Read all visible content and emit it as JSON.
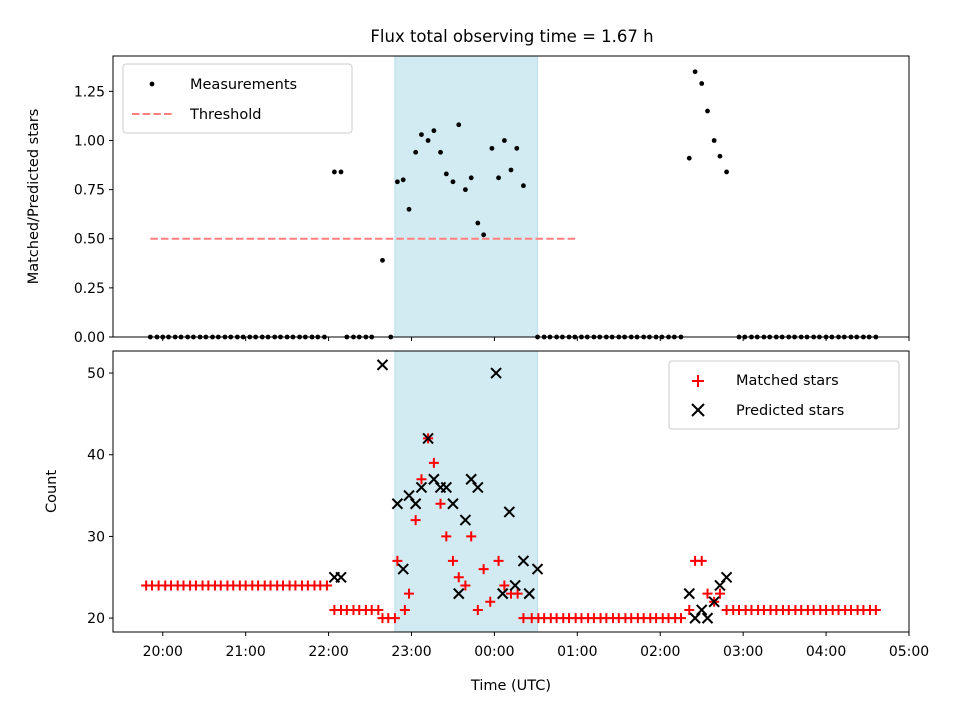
{
  "chart_data": {
    "title": "Flux total observing time = 1.67 h",
    "xlabel": "Time (UTC)",
    "x_unit": "hours since 20:00 UTC",
    "x_range": [
      -0.6,
      9.0
    ],
    "x_ticks": [
      {
        "value": 0,
        "label": "20:00"
      },
      {
        "value": 1,
        "label": "21:00"
      },
      {
        "value": 2,
        "label": "22:00"
      },
      {
        "value": 3,
        "label": "23:00"
      },
      {
        "value": 4,
        "label": "00:00"
      },
      {
        "value": 5,
        "label": "01:00"
      },
      {
        "value": 6,
        "label": "02:00"
      },
      {
        "value": 7,
        "label": "03:00"
      },
      {
        "value": 8,
        "label": "04:00"
      },
      {
        "value": 9,
        "label": "05:00"
      }
    ],
    "observing_window": [
      2.8,
      4.52
    ],
    "panels": [
      {
        "type": "scatter",
        "ylabel": "Matched/Predicted stars",
        "ylim": [
          0,
          1.43
        ],
        "y_ticks": [
          "0.00",
          "0.25",
          "0.50",
          "0.75",
          "1.00",
          "1.25"
        ],
        "legend": {
          "position": "top-left",
          "measurements_label": "Measurements",
          "threshold_label": "Threshold"
        },
        "threshold": {
          "value": 0.5,
          "x_range": [
            -0.15,
            4.98
          ]
        },
        "measurements": [
          [
            -0.15,
            0
          ],
          [
            -0.07,
            0
          ],
          [
            0,
            0
          ],
          [
            0.07,
            0
          ],
          [
            0.15,
            0
          ],
          [
            0.22,
            0
          ],
          [
            0.3,
            0
          ],
          [
            0.37,
            0
          ],
          [
            0.45,
            0
          ],
          [
            0.52,
            0
          ],
          [
            0.6,
            0
          ],
          [
            0.67,
            0
          ],
          [
            0.75,
            0
          ],
          [
            0.82,
            0
          ],
          [
            0.9,
            0
          ],
          [
            0.97,
            0
          ],
          [
            1.05,
            0
          ],
          [
            1.12,
            0
          ],
          [
            1.2,
            0
          ],
          [
            1.27,
            0
          ],
          [
            1.35,
            0
          ],
          [
            1.42,
            0
          ],
          [
            1.5,
            0
          ],
          [
            1.57,
            0
          ],
          [
            1.65,
            0
          ],
          [
            1.72,
            0
          ],
          [
            1.8,
            0
          ],
          [
            1.87,
            0
          ],
          [
            1.95,
            0
          ],
          [
            2.07,
            0.84
          ],
          [
            2.15,
            0.84
          ],
          [
            2.22,
            0
          ],
          [
            2.3,
            0
          ],
          [
            2.37,
            0
          ],
          [
            2.45,
            0
          ],
          [
            2.52,
            0
          ],
          [
            2.65,
            0.39
          ],
          [
            2.75,
            0
          ],
          [
            2.83,
            0.79
          ],
          [
            2.9,
            0.8
          ],
          [
            2.97,
            0.65
          ],
          [
            3.05,
            0.94
          ],
          [
            3.12,
            1.03
          ],
          [
            3.2,
            1.0
          ],
          [
            3.27,
            1.05
          ],
          [
            3.35,
            0.94
          ],
          [
            3.42,
            0.83
          ],
          [
            3.5,
            0.79
          ],
          [
            3.57,
            1.08
          ],
          [
            3.65,
            0.75
          ],
          [
            3.72,
            0.81
          ],
          [
            3.8,
            0.58
          ],
          [
            3.87,
            0.52
          ],
          [
            3.97,
            0.96
          ],
          [
            4.05,
            0.81
          ],
          [
            4.12,
            1.0
          ],
          [
            4.2,
            0.85
          ],
          [
            4.27,
            0.96
          ],
          [
            4.35,
            0.77
          ],
          [
            4.52,
            0
          ],
          [
            4.6,
            0
          ],
          [
            4.67,
            0
          ],
          [
            4.75,
            0
          ],
          [
            4.82,
            0
          ],
          [
            4.9,
            0
          ],
          [
            4.97,
            0
          ],
          [
            5.05,
            0
          ],
          [
            5.12,
            0
          ],
          [
            5.2,
            0
          ],
          [
            5.27,
            0
          ],
          [
            5.35,
            0
          ],
          [
            5.42,
            0
          ],
          [
            5.5,
            0
          ],
          [
            5.57,
            0
          ],
          [
            5.65,
            0
          ],
          [
            5.72,
            0
          ],
          [
            5.8,
            0
          ],
          [
            5.87,
            0
          ],
          [
            5.95,
            0
          ],
          [
            6.02,
            0
          ],
          [
            6.1,
            0
          ],
          [
            6.17,
            0
          ],
          [
            6.25,
            0
          ],
          [
            6.35,
            0.91
          ],
          [
            6.42,
            1.35
          ],
          [
            6.5,
            1.29
          ],
          [
            6.57,
            1.15
          ],
          [
            6.65,
            1.0
          ],
          [
            6.72,
            0.92
          ],
          [
            6.8,
            0.84
          ],
          [
            6.95,
            0
          ],
          [
            7.02,
            0
          ],
          [
            7.1,
            0
          ],
          [
            7.17,
            0
          ],
          [
            7.25,
            0
          ],
          [
            7.32,
            0
          ],
          [
            7.4,
            0
          ],
          [
            7.47,
            0
          ],
          [
            7.55,
            0
          ],
          [
            7.62,
            0
          ],
          [
            7.7,
            0
          ],
          [
            7.77,
            0
          ],
          [
            7.85,
            0
          ],
          [
            7.92,
            0
          ],
          [
            8.0,
            0
          ],
          [
            8.07,
            0
          ],
          [
            8.15,
            0
          ],
          [
            8.22,
            0
          ],
          [
            8.3,
            0
          ],
          [
            8.37,
            0
          ],
          [
            8.45,
            0
          ],
          [
            8.52,
            0
          ],
          [
            8.6,
            0
          ]
        ]
      },
      {
        "type": "scatter",
        "ylabel": "Count",
        "ylim": [
          18.3,
          52.7
        ],
        "y_ticks": [
          "20",
          "30",
          "40",
          "50"
        ],
        "legend": {
          "position": "top-right",
          "matched_label": "Matched stars",
          "predicted_label": "Predicted stars"
        },
        "matched": [
          [
            -0.2,
            24
          ],
          [
            -0.13,
            24
          ],
          [
            -0.05,
            24
          ],
          [
            0.03,
            24
          ],
          [
            0.1,
            24
          ],
          [
            0.18,
            24
          ],
          [
            0.25,
            24
          ],
          [
            0.33,
            24
          ],
          [
            0.4,
            24
          ],
          [
            0.48,
            24
          ],
          [
            0.55,
            24
          ],
          [
            0.63,
            24
          ],
          [
            0.7,
            24
          ],
          [
            0.78,
            24
          ],
          [
            0.85,
            24
          ],
          [
            0.93,
            24
          ],
          [
            1.0,
            24
          ],
          [
            1.08,
            24
          ],
          [
            1.15,
            24
          ],
          [
            1.23,
            24
          ],
          [
            1.3,
            24
          ],
          [
            1.38,
            24
          ],
          [
            1.45,
            24
          ],
          [
            1.53,
            24
          ],
          [
            1.6,
            24
          ],
          [
            1.68,
            24
          ],
          [
            1.75,
            24
          ],
          [
            1.83,
            24
          ],
          [
            1.9,
            24
          ],
          [
            1.98,
            24
          ],
          [
            2.07,
            21
          ],
          [
            2.15,
            21
          ],
          [
            2.22,
            21
          ],
          [
            2.3,
            21
          ],
          [
            2.37,
            21
          ],
          [
            2.45,
            21
          ],
          [
            2.52,
            21
          ],
          [
            2.6,
            21
          ],
          [
            2.65,
            20
          ],
          [
            2.72,
            20
          ],
          [
            2.8,
            20
          ],
          [
            2.83,
            27
          ],
          [
            2.92,
            21
          ],
          [
            2.97,
            23
          ],
          [
            3.05,
            32
          ],
          [
            3.12,
            37
          ],
          [
            3.2,
            42
          ],
          [
            3.27,
            39
          ],
          [
            3.35,
            34
          ],
          [
            3.42,
            30
          ],
          [
            3.5,
            27
          ],
          [
            3.57,
            25
          ],
          [
            3.65,
            24
          ],
          [
            3.72,
            30
          ],
          [
            3.8,
            21
          ],
          [
            3.87,
            26
          ],
          [
            3.95,
            22
          ],
          [
            4.05,
            27
          ],
          [
            4.12,
            24
          ],
          [
            4.2,
            23
          ],
          [
            4.28,
            23
          ],
          [
            4.35,
            20
          ],
          [
            4.45,
            20
          ],
          [
            4.53,
            20
          ],
          [
            4.6,
            20
          ],
          [
            4.68,
            20
          ],
          [
            4.75,
            20
          ],
          [
            4.83,
            20
          ],
          [
            4.9,
            20
          ],
          [
            4.98,
            20
          ],
          [
            5.05,
            20
          ],
          [
            5.13,
            20
          ],
          [
            5.2,
            20
          ],
          [
            5.28,
            20
          ],
          [
            5.35,
            20
          ],
          [
            5.43,
            20
          ],
          [
            5.5,
            20
          ],
          [
            5.58,
            20
          ],
          [
            5.65,
            20
          ],
          [
            5.73,
            20
          ],
          [
            5.8,
            20
          ],
          [
            5.88,
            20
          ],
          [
            5.95,
            20
          ],
          [
            6.03,
            20
          ],
          [
            6.1,
            20
          ],
          [
            6.18,
            20
          ],
          [
            6.25,
            20
          ],
          [
            6.35,
            21
          ],
          [
            6.42,
            27
          ],
          [
            6.5,
            27
          ],
          [
            6.57,
            23
          ],
          [
            6.65,
            22
          ],
          [
            6.72,
            23
          ],
          [
            6.8,
            21
          ],
          [
            6.88,
            21
          ],
          [
            6.95,
            21
          ],
          [
            7.03,
            21
          ],
          [
            7.1,
            21
          ],
          [
            7.18,
            21
          ],
          [
            7.25,
            21
          ],
          [
            7.33,
            21
          ],
          [
            7.4,
            21
          ],
          [
            7.48,
            21
          ],
          [
            7.55,
            21
          ],
          [
            7.63,
            21
          ],
          [
            7.7,
            21
          ],
          [
            7.78,
            21
          ],
          [
            7.85,
            21
          ],
          [
            7.93,
            21
          ],
          [
            8.0,
            21
          ],
          [
            8.08,
            21
          ],
          [
            8.15,
            21
          ],
          [
            8.23,
            21
          ],
          [
            8.3,
            21
          ],
          [
            8.38,
            21
          ],
          [
            8.45,
            21
          ],
          [
            8.53,
            21
          ],
          [
            8.6,
            21
          ]
        ],
        "predicted": [
          [
            2.07,
            25
          ],
          [
            2.15,
            25
          ],
          [
            2.65,
            51
          ],
          [
            2.83,
            34
          ],
          [
            2.9,
            26
          ],
          [
            2.97,
            35
          ],
          [
            3.05,
            34
          ],
          [
            3.12,
            36
          ],
          [
            3.2,
            42
          ],
          [
            3.27,
            37
          ],
          [
            3.35,
            36
          ],
          [
            3.42,
            36
          ],
          [
            3.5,
            34
          ],
          [
            3.57,
            23
          ],
          [
            3.65,
            32
          ],
          [
            3.72,
            37
          ],
          [
            3.8,
            36
          ],
          [
            4.02,
            50
          ],
          [
            4.1,
            23
          ],
          [
            4.18,
            33
          ],
          [
            4.25,
            24
          ],
          [
            4.35,
            27
          ],
          [
            4.42,
            23
          ],
          [
            4.52,
            26
          ],
          [
            6.35,
            23
          ],
          [
            6.42,
            20
          ],
          [
            6.5,
            21
          ],
          [
            6.57,
            20
          ],
          [
            6.65,
            22
          ],
          [
            6.72,
            24
          ],
          [
            6.8,
            25
          ]
        ]
      }
    ]
  }
}
